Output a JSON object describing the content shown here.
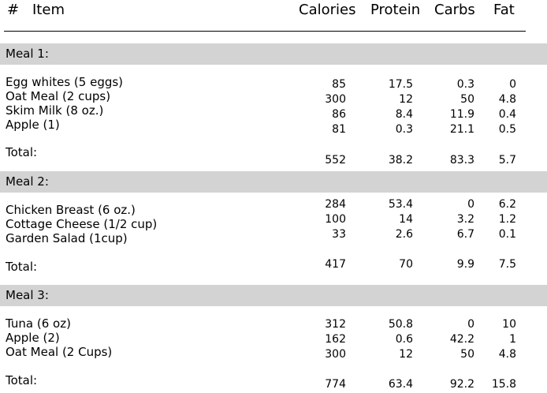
{
  "header": {
    "hash": "#",
    "item": "Item",
    "calories": "Calories",
    "protein": "Protein",
    "carbs": "Carbs",
    "fat": "Fat"
  },
  "meals": [
    {
      "title": "Meal 1:",
      "items": [
        "Egg whites (5 eggs)",
        "Oat Meal (2 cups)",
        "Skim Milk (8 oz.)",
        "Apple (1)"
      ],
      "calories": [
        "85",
        "300",
        "86",
        "81"
      ],
      "protein": [
        "17.5",
        "12",
        "8.4",
        "0.3"
      ],
      "carbs": [
        "0.3",
        "50",
        "11.9",
        "21.1"
      ],
      "fat": [
        "0",
        "4.8",
        "0.4",
        "0.5"
      ],
      "total": {
        "label": "Total:",
        "calories": "552",
        "protein": "38.2",
        "carbs": "83.3",
        "fat": "5.7"
      }
    },
    {
      "title": "Meal 2:",
      "items": [
        "Chicken Breast (6 oz.)",
        "Cottage Cheese (1/2 cup)",
        "Garden Salad (1cup)"
      ],
      "calories": [
        "284",
        "100",
        "33"
      ],
      "protein": [
        "53.4",
        "14",
        "2.6"
      ],
      "carbs": [
        "0",
        "3.2",
        "6.7"
      ],
      "fat": [
        "6.2",
        "1.2",
        "0.1"
      ],
      "total": {
        "label": "Total:",
        "calories": "417",
        "protein": "70",
        "carbs": "9.9",
        "fat": "7.5"
      }
    },
    {
      "title": "Meal 3:",
      "items": [
        "Tuna (6 oz)",
        "Apple (2)",
        "Oat Meal (2 Cups)"
      ],
      "calories": [
        "312",
        "162",
        "300"
      ],
      "protein": [
        "50.8",
        "0.6",
        "12"
      ],
      "carbs": [
        "0",
        "42.2",
        "50"
      ],
      "fat": [
        "10",
        "1",
        "4.8"
      ],
      "total": {
        "label": "Total:",
        "calories": "774",
        "protein": "63.4",
        "carbs": "92.2",
        "fat": "15.8"
      }
    }
  ]
}
